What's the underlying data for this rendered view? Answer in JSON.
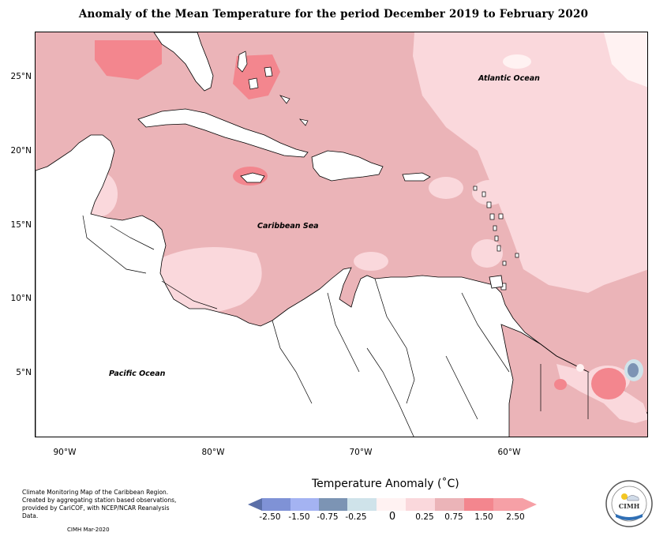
{
  "title": "Anomaly of the Mean Temperature for the period December 2019 to February 2020",
  "axes": {
    "y_labels": [
      "25°N",
      "20°N",
      "15°N",
      "10°N",
      "5°N"
    ],
    "x_labels": [
      "90°W",
      "80°W",
      "70°W",
      "60°W"
    ]
  },
  "map_labels": {
    "atlantic": "Atlantic Ocean",
    "caribbean": "Caribbean Sea",
    "pacific": "Pacific Ocean"
  },
  "footnote": {
    "text": "Climate Monitoring Map of the Caribbean Region. Created by aggregating station based observations, provided by CariCOF, with NCEP/NCAR Reanalysis Data.",
    "date": "CIMH Mar-2020"
  },
  "legend": {
    "title": "Temperature Anomaly (˚C)",
    "ticks": [
      "-2.50",
      "-1.50",
      "-0.75",
      "-0.25",
      "0",
      "0.25",
      "0.75",
      "1.50",
      "2.50"
    ],
    "colors": [
      "#5b6fa8",
      "#7f92d6",
      "#a4b3f2",
      "#7c94b4",
      "#cfe3ea",
      "#fff2f2",
      "#fad8dc",
      "#ebb4b8",
      "#f3868e",
      "#f6a0a6"
    ]
  },
  "logo_text": {
    "name": "CIMH"
  }
}
